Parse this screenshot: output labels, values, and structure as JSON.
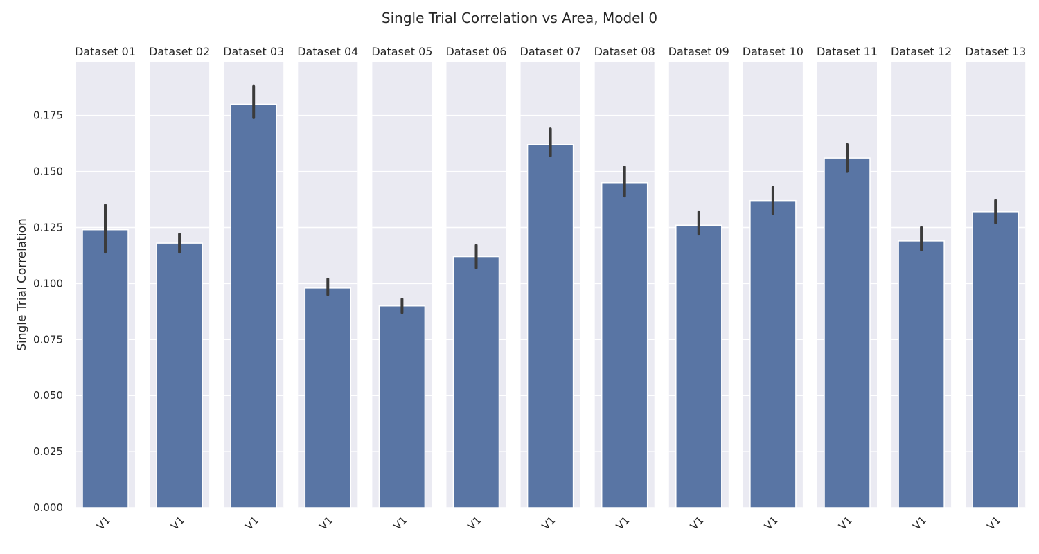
{
  "chart_data": {
    "type": "bar",
    "title": "Single Trial Correlation vs Area, Model 0",
    "ylabel": "Single Trial Correlation",
    "xlabel": "",
    "ylim": [
      0,
      0.199
    ],
    "yticks": [
      0.0,
      0.025,
      0.05,
      0.075,
      0.1,
      0.125,
      0.15,
      0.175
    ],
    "ytick_labels": [
      "0.000",
      "0.025",
      "0.050",
      "0.075",
      "0.100",
      "0.125",
      "0.150",
      "0.175"
    ],
    "grid": true,
    "bar_color": "#5975a4",
    "panel_bg": "#eaeaf2",
    "errbar_color": "#3b3b3b",
    "panels": [
      {
        "title": "Dataset 01",
        "category": "V1",
        "value": 0.124,
        "err_low": 0.114,
        "err_high": 0.135
      },
      {
        "title": "Dataset 02",
        "category": "V1",
        "value": 0.118,
        "err_low": 0.114,
        "err_high": 0.122
      },
      {
        "title": "Dataset 03",
        "category": "V1",
        "value": 0.18,
        "err_low": 0.174,
        "err_high": 0.188
      },
      {
        "title": "Dataset 04",
        "category": "V1",
        "value": 0.098,
        "err_low": 0.095,
        "err_high": 0.102
      },
      {
        "title": "Dataset 05",
        "category": "V1",
        "value": 0.09,
        "err_low": 0.087,
        "err_high": 0.093
      },
      {
        "title": "Dataset 06",
        "category": "V1",
        "value": 0.112,
        "err_low": 0.107,
        "err_high": 0.117
      },
      {
        "title": "Dataset 07",
        "category": "V1",
        "value": 0.162,
        "err_low": 0.157,
        "err_high": 0.169
      },
      {
        "title": "Dataset 08",
        "category": "V1",
        "value": 0.145,
        "err_low": 0.139,
        "err_high": 0.152
      },
      {
        "title": "Dataset 09",
        "category": "V1",
        "value": 0.126,
        "err_low": 0.122,
        "err_high": 0.132
      },
      {
        "title": "Dataset 10",
        "category": "V1",
        "value": 0.137,
        "err_low": 0.131,
        "err_high": 0.143
      },
      {
        "title": "Dataset 11",
        "category": "V1",
        "value": 0.156,
        "err_low": 0.15,
        "err_high": 0.162
      },
      {
        "title": "Dataset 12",
        "category": "V1",
        "value": 0.119,
        "err_low": 0.115,
        "err_high": 0.125
      },
      {
        "title": "Dataset 13",
        "category": "V1",
        "value": 0.132,
        "err_low": 0.127,
        "err_high": 0.137
      }
    ]
  }
}
